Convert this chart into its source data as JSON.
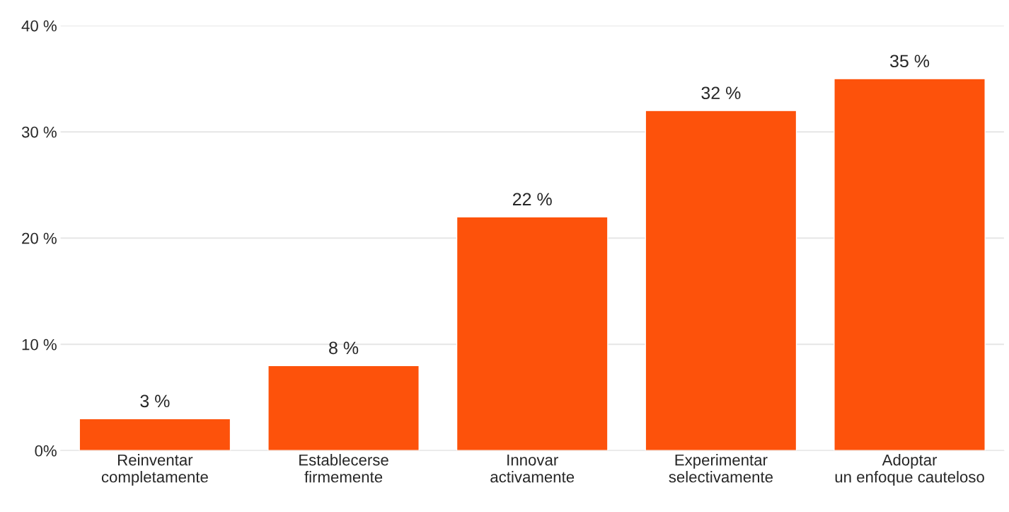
{
  "chart_data": {
    "type": "bar",
    "categories": [
      "Reinventar\ncompletamente",
      "Establecerse\nfirmemente",
      "Innovar\nactivamente",
      "Experimentar\nselectivamente",
      "Adoptar\nun enfoque cauteloso"
    ],
    "values": [
      3,
      8,
      22,
      32,
      35
    ],
    "value_labels": [
      "3 %",
      "8 %",
      "22 %",
      "32 %",
      "35 %"
    ],
    "color": "#fd520b",
    "ylim": [
      0,
      40
    ],
    "yticks": [
      {
        "value": 0,
        "label": "0%"
      },
      {
        "value": 10,
        "label": "10 %"
      },
      {
        "value": 20,
        "label": "20 %"
      },
      {
        "value": 30,
        "label": "30 %"
      },
      {
        "value": 40,
        "label": "40 %"
      }
    ],
    "grid": "y",
    "legend": false
  }
}
